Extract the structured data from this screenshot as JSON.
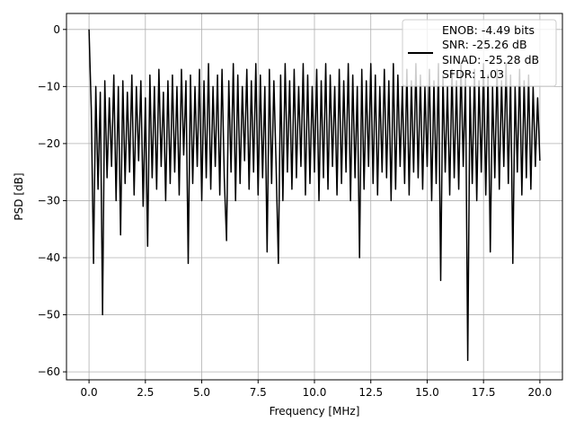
{
  "chart_data": {
    "type": "line",
    "title": "",
    "xlabel": "Frequency [MHz]",
    "ylabel": "PSD [dB]",
    "xlim": [
      -1.0,
      21.0
    ],
    "ylim": [
      -61.4,
      2.8
    ],
    "grid": true,
    "xticks": [
      0.0,
      2.5,
      5.0,
      7.5,
      10.0,
      12.5,
      15.0,
      17.5,
      20.0
    ],
    "xtick_labels": [
      "0.0",
      "2.5",
      "5.0",
      "7.5",
      "10.0",
      "12.5",
      "15.0",
      "17.5",
      "20.0"
    ],
    "yticks": [
      0,
      -10,
      -20,
      -30,
      -40,
      -50,
      -60
    ],
    "ytick_labels": [
      "0",
      "−10",
      "−20",
      "−30",
      "−40",
      "−50",
      "−60"
    ],
    "legend": {
      "placement": "top-right",
      "lines": [
        "ENOB: -4.49 bits",
        "SNR: -25.26 dB",
        "SINAD: -25.28 dB",
        "SFDR: 1.03"
      ]
    },
    "series": [
      {
        "name": "PSD",
        "color": "#000000",
        "x_start": 0.0,
        "x_step": 0.1,
        "values": [
          0,
          -14,
          -41,
          -10,
          -28,
          -11,
          -50,
          -9,
          -26,
          -12,
          -24,
          -8,
          -30,
          -10,
          -36,
          -9,
          -27,
          -11,
          -25,
          -8,
          -29,
          -10,
          -23,
          -9,
          -31,
          -12,
          -38,
          -8,
          -26,
          -10,
          -28,
          -7,
          -24,
          -11,
          -30,
          -9,
          -27,
          -8,
          -25,
          -10,
          -29,
          -7,
          -22,
          -9,
          -41,
          -8,
          -27,
          -10,
          -24,
          -7,
          -30,
          -9,
          -26,
          -6,
          -28,
          -10,
          -24,
          -8,
          -29,
          -7,
          -26,
          -37,
          -9,
          -25,
          -6,
          -30,
          -8,
          -27,
          -10,
          -23,
          -7,
          -28,
          -9,
          -25,
          -6,
          -29,
          -8,
          -26,
          -10,
          -39,
          -7,
          -27,
          -9,
          -24,
          -41,
          -8,
          -30,
          -6,
          -25,
          -9,
          -28,
          -7,
          -26,
          -10,
          -24,
          -6,
          -29,
          -8,
          -27,
          -10,
          -25,
          -7,
          -30,
          -9,
          -26,
          -6,
          -28,
          -8,
          -24,
          -10,
          -29,
          -7,
          -27,
          -9,
          -25,
          -6,
          -30,
          -8,
          -26,
          -10,
          -40,
          -7,
          -28,
          -9,
          -24,
          -6,
          -27,
          -8,
          -29,
          -10,
          -25,
          -7,
          -26,
          -9,
          -30,
          -6,
          -28,
          -8,
          -24,
          -10,
          -27,
          -7,
          -29,
          -9,
          -25,
          -6,
          -26,
          -8,
          -28,
          -10,
          -24,
          -7,
          -30,
          -9,
          -27,
          -6,
          -44,
          -8,
          -25,
          -10,
          -29,
          -7,
          -26,
          -9,
          -28,
          -6,
          -24,
          -8,
          -58,
          -10,
          -27,
          -7,
          -30,
          -9,
          -25,
          -6,
          -29,
          -8,
          -39,
          -10,
          -26,
          -7,
          -28,
          -9,
          -24,
          -6,
          -27,
          -8,
          -41,
          -10,
          -25,
          -7,
          -29,
          -9,
          -26,
          -8,
          -28,
          -10,
          -24,
          -12,
          -23
        ]
      }
    ]
  }
}
